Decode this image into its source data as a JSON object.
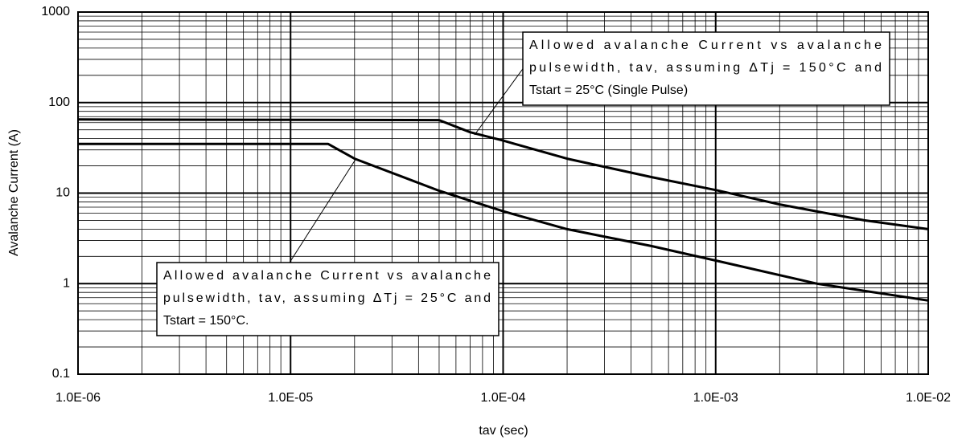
{
  "chart_data": {
    "type": "line",
    "x_label": "tav (sec)",
    "y_label": "Avalanche Current (A)",
    "xscale": "log",
    "yscale": "log",
    "grid": true,
    "minor_grid": true,
    "xlim": [
      1e-06,
      0.01
    ],
    "xticks": [
      {
        "value": 1e-06,
        "label": "1.0E-06"
      },
      {
        "value": 1e-05,
        "label": "1.0E-05"
      },
      {
        "value": 0.0001,
        "label": "1.0E-04"
      },
      {
        "value": 0.001,
        "label": "1.0E-03"
      },
      {
        "value": 0.01,
        "label": "1.0E-02"
      }
    ],
    "ylim": [
      0.1,
      1000
    ],
    "yticks": [
      0.1,
      1,
      10,
      100,
      1000
    ],
    "series": [
      {
        "color": "#000000",
        "x": [
          1e-06,
          5e-05,
          7e-05,
          0.0001,
          0.0002,
          0.0005,
          0.001,
          0.002,
          0.005,
          0.01
        ],
        "values": [
          65,
          64,
          47,
          38,
          24,
          15,
          10.8,
          7.5,
          5,
          4
        ]
      },
      {
        "color": "#000000",
        "x": [
          1e-06,
          1.5e-05,
          2e-05,
          5e-05,
          0.0001,
          0.0002,
          0.0005,
          0.001,
          0.003,
          0.01
        ],
        "values": [
          35,
          35,
          24,
          10.6,
          6.3,
          4,
          2.6,
          1.8,
          1,
          0.65
        ]
      }
    ],
    "annotations": [
      {
        "lines": [
          "Allowed avalanche Current vs avalanche",
          "pulsewidth, tav, assuming ΔTj = 150°C and",
          "Tstart = 25°C (Single Pulse)"
        ]
      },
      {
        "lines": [
          "Allowed avalanche Current vs avalanche",
          "pulsewidth, tav, assuming ΔTj = 25°C and",
          "Tstart = 150°C."
        ]
      }
    ]
  }
}
